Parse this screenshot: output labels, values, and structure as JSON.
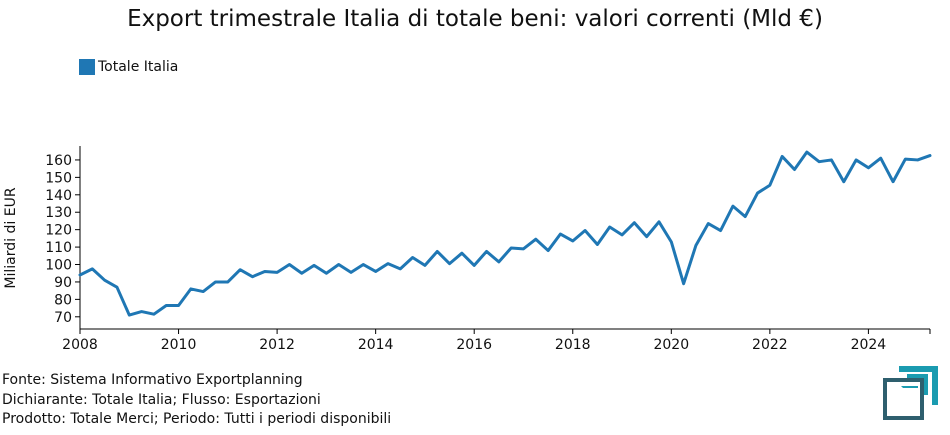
{
  "chart_data": {
    "type": "line",
    "title": "Export trimestrale Italia di totale beni: valori correnti (Mld €)",
    "ylabel": "Miliardi di EUR",
    "xlabel": "",
    "ylim": [
      63,
      168
    ],
    "xlim": [
      2008,
      2025.25
    ],
    "yticks": [
      70,
      80,
      90,
      100,
      110,
      120,
      130,
      140,
      150,
      160
    ],
    "xticks": [
      2008,
      2010,
      2012,
      2014,
      2016,
      2018,
      2020,
      2022,
      2024
    ],
    "legend_position": "top-left",
    "grid": false,
    "series": [
      {
        "name": "Totale Italia",
        "color": "#1f77b4",
        "x": [
          2008,
          2008.25,
          2008.5,
          2008.75,
          2009,
          2009.25,
          2009.5,
          2009.75,
          2010,
          2010.25,
          2010.5,
          2010.75,
          2011,
          2011.25,
          2011.5,
          2011.75,
          2012,
          2012.25,
          2012.5,
          2012.75,
          2013,
          2013.25,
          2013.5,
          2013.75,
          2014,
          2014.25,
          2014.5,
          2014.75,
          2015,
          2015.25,
          2015.5,
          2015.75,
          2016,
          2016.25,
          2016.5,
          2016.75,
          2017,
          2017.25,
          2017.5,
          2017.75,
          2018,
          2018.25,
          2018.5,
          2018.75,
          2019,
          2019.25,
          2019.5,
          2019.75,
          2020,
          2020.25,
          2020.5,
          2020.75,
          2021,
          2021.25,
          2021.5,
          2021.75,
          2022,
          2022.25,
          2022.5,
          2022.75,
          2023,
          2023.25,
          2023.5,
          2023.75,
          2024,
          2024.25,
          2024.5,
          2024.75,
          2025,
          2025.25
        ],
        "values": [
          94,
          97.5,
          91,
          87,
          71,
          73,
          71.5,
          76.5,
          76.5,
          86,
          84.5,
          90,
          90,
          97,
          93,
          96,
          95.5,
          100,
          95,
          99.5,
          95,
          100,
          95.5,
          100,
          96,
          100.5,
          97.5,
          104,
          99.5,
          107.5,
          100.5,
          106.5,
          99.5,
          107.5,
          101.5,
          109.5,
          109,
          114.5,
          108,
          117.5,
          113.5,
          119.5,
          111.5,
          121.5,
          117,
          124,
          116,
          124.5,
          113,
          89,
          111,
          123.5,
          119.5,
          133.5,
          127.5,
          141,
          145.5,
          162,
          154.5,
          164.5,
          159,
          160,
          147.5,
          160,
          155.5,
          161,
          147.5,
          160.5,
          160,
          162.5
        ]
      }
    ]
  },
  "legend": {
    "label": "Totale Italia",
    "color": "#1f77b4"
  },
  "footer": {
    "line1": "Fonte: Sistema Informativo Exportplanning",
    "line2": "Dichiarante: Totale Italia; Flusso: Esportazioni",
    "line3": "Prodotto: Totale Merci; Periodo: Tutti i periodi disponibili"
  },
  "logo": {
    "icon": "exportplanning-logo-icon",
    "color_dark": "#2e5f6e",
    "color_accent": "#1a9bb0"
  }
}
